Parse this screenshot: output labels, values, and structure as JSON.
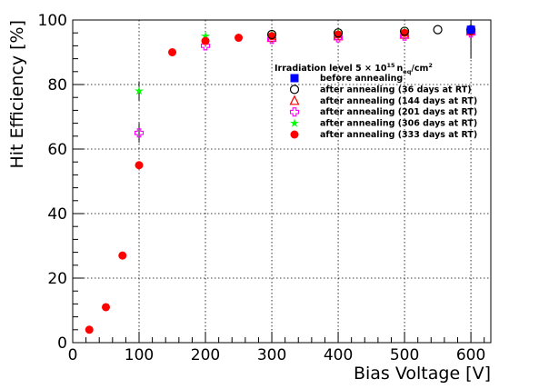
{
  "chart_data": {
    "type": "scatter",
    "xlabel": "Bias Voltage [V]",
    "ylabel": "Hit Efficiency [%]",
    "xlim": [
      0,
      630
    ],
    "ylim": [
      0,
      100
    ],
    "x_ticks": [
      "0",
      "100",
      "200",
      "300",
      "400",
      "500",
      "600"
    ],
    "y_ticks": [
      "0",
      "20",
      "40",
      "60",
      "80",
      "100"
    ],
    "grid": true,
    "legend_position": "top-right",
    "legend_title": {
      "prefix": "Irradiation level 5 × 10",
      "exponent": "15",
      "unit": "n",
      "unit_subscript": "eq",
      "suffix": "/cm",
      "suffix_exponent": "2"
    },
    "series": [
      {
        "name": "before annealing",
        "marker": "square",
        "color": "#0000ff",
        "points": [
          [
            600,
            97
          ]
        ]
      },
      {
        "name": "after annealing (36 days at RT)",
        "marker": "open-circle",
        "color": "#000000",
        "points": [
          [
            300,
            95.5
          ],
          [
            400,
            96
          ],
          [
            500,
            96.5
          ],
          [
            550,
            97
          ],
          [
            600,
            97
          ]
        ]
      },
      {
        "name": "after annealing (144 days at RT)",
        "marker": "open-triangle",
        "color": "#ff0000",
        "points": [
          [
            300,
            94.5
          ],
          [
            400,
            95
          ],
          [
            500,
            95.5
          ],
          [
            600,
            96.5
          ]
        ]
      },
      {
        "name": "after annealing (201 days at RT)",
        "marker": "open-cross",
        "color": "#ff00ff",
        "points": [
          [
            100,
            65
          ],
          [
            200,
            92
          ],
          [
            300,
            94
          ],
          [
            400,
            94.5
          ],
          [
            500,
            95
          ],
          [
            600,
            96
          ]
        ]
      },
      {
        "name": "after annealing (306 days at RT)",
        "marker": "star",
        "color": "#00ff00",
        "points": [
          [
            100,
            78
          ],
          [
            200,
            95
          ],
          [
            300,
            95.5
          ],
          [
            400,
            96
          ],
          [
            500,
            96.5
          ],
          [
            600,
            97
          ]
        ]
      },
      {
        "name": "after annealing (333 days at RT)",
        "marker": "filled-circle",
        "color": "#ff0000",
        "points": [
          [
            25,
            4
          ],
          [
            50,
            11
          ],
          [
            75,
            27
          ],
          [
            100,
            55
          ],
          [
            150,
            90
          ],
          [
            200,
            93.5
          ],
          [
            250,
            94.5
          ],
          [
            300,
            95
          ],
          [
            400,
            95.5
          ],
          [
            500,
            96
          ],
          [
            600,
            96.5
          ]
        ]
      }
    ]
  }
}
